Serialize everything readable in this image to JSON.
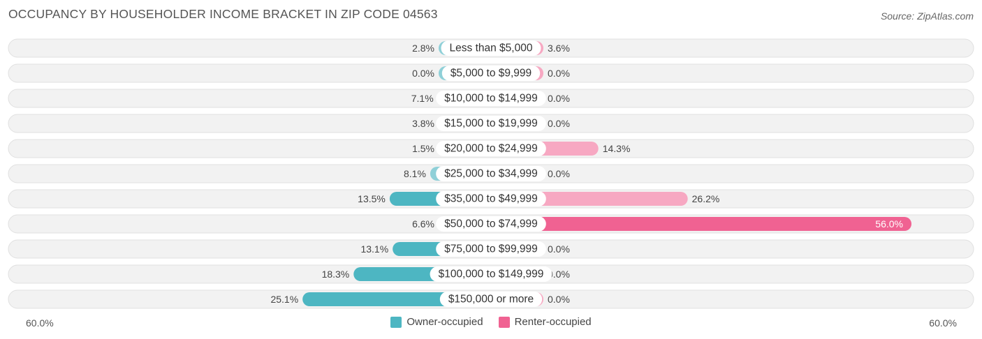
{
  "title": "OCCUPANCY BY HOUSEHOLDER INCOME BRACKET IN ZIP CODE 04563",
  "source": "Source: ZipAtlas.com",
  "colors": {
    "owner": "#4db6c2",
    "owner_light": "#8fd0d8",
    "renter": "#f06292",
    "renter_light": "#f7a8c2",
    "row_bg": "#f2f2f2",
    "row_border": "#e0e0e0"
  },
  "chart_data": {
    "type": "bar",
    "orientation": "diverging-horizontal",
    "axis": {
      "left_label": "60.0%",
      "right_label": "60.0%",
      "max": 60.0
    },
    "legend_position": "bottom-center",
    "categories": [
      "Less than $5,000",
      "$5,000 to $9,999",
      "$10,000 to $14,999",
      "$15,000 to $19,999",
      "$20,000 to $24,999",
      "$25,000 to $34,999",
      "$35,000 to $49,999",
      "$50,000 to $74,999",
      "$75,000 to $99,999",
      "$100,000 to $149,999",
      "$150,000 or more"
    ],
    "series": [
      {
        "name": "Owner-occupied",
        "side": "left",
        "values": [
          2.8,
          0.0,
          7.1,
          3.8,
          1.5,
          8.1,
          13.5,
          6.6,
          13.1,
          18.3,
          25.1
        ],
        "labels": [
          "2.8%",
          "0.0%",
          "7.1%",
          "3.8%",
          "1.5%",
          "8.1%",
          "13.5%",
          "6.6%",
          "13.1%",
          "18.3%",
          "25.1%"
        ]
      },
      {
        "name": "Renter-occupied",
        "side": "right",
        "values": [
          3.6,
          0.0,
          0.0,
          0.0,
          14.3,
          0.0,
          26.2,
          56.0,
          0.0,
          0.0,
          0.0
        ],
        "labels": [
          "3.6%",
          "0.0%",
          "0.0%",
          "0.0%",
          "14.3%",
          "0.0%",
          "26.2%",
          "56.0%",
          "0.0%",
          "0.0%",
          "0.0%"
        ]
      }
    ]
  }
}
